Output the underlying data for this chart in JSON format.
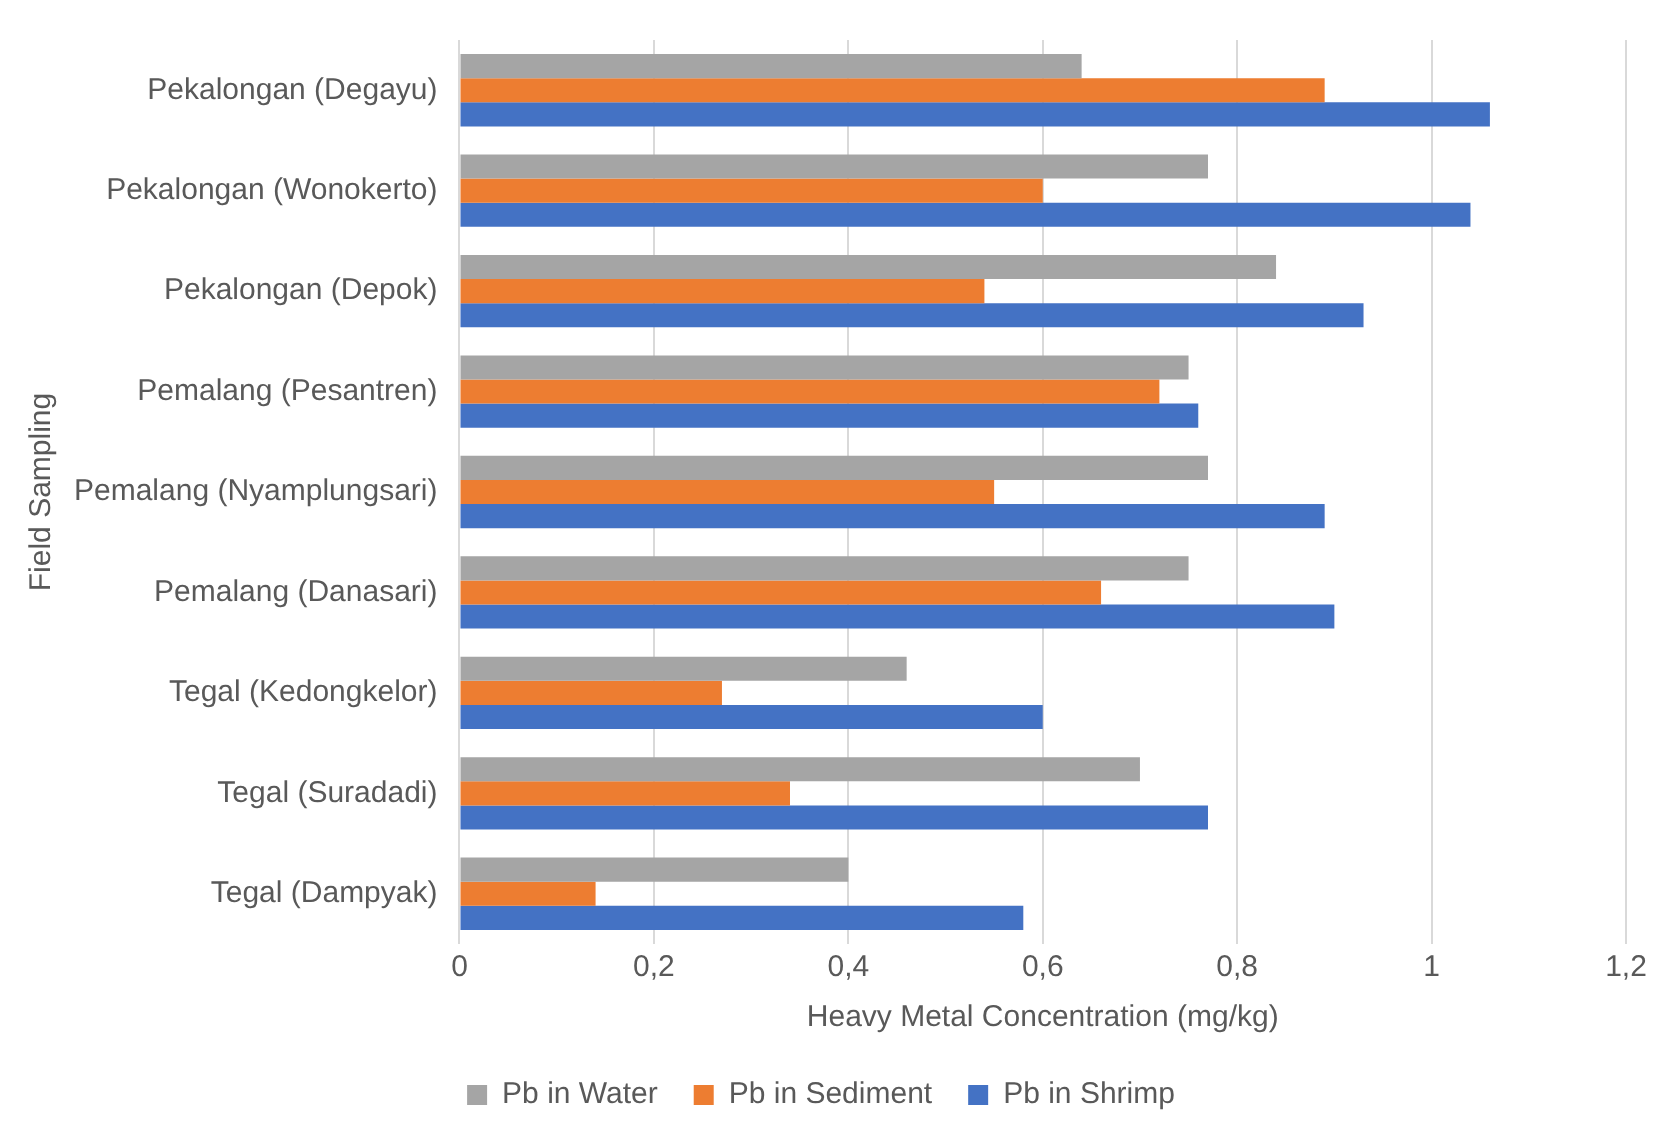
{
  "chart_data": {
    "type": "bar",
    "orientation": "horizontal",
    "xlabel": "Heavy Metal Concentration (mg/kg)",
    "ylabel": "Field Sampling",
    "categories": [
      "Pekalongan (Degayu)",
      "Pekalongan (Wonokerto)",
      "Pekalongan (Depok)",
      "Pemalang (Pesantren)",
      "Pemalang (Nyamplungsari)",
      "Pemalang (Danasari)",
      "Tegal (Kedongkelor)",
      "Tegal (Suradadi)",
      "Tegal (Dampyak)"
    ],
    "series": [
      {
        "name": "Pb in Water",
        "color": "#a5a5a5",
        "values": [
          0.64,
          0.77,
          0.84,
          0.75,
          0.77,
          0.75,
          0.46,
          0.7,
          0.4
        ]
      },
      {
        "name": "Pb in Sediment",
        "color": "#ed7d31",
        "values": [
          0.89,
          0.6,
          0.54,
          0.72,
          0.55,
          0.66,
          0.27,
          0.34,
          0.14
        ]
      },
      {
        "name": "Pb in Shrimp",
        "color": "#4472c4",
        "values": [
          1.06,
          1.04,
          0.93,
          0.76,
          0.89,
          0.9,
          0.6,
          0.77,
          0.58
        ]
      }
    ],
    "xlim": [
      0,
      1.2
    ],
    "xticks": [
      0,
      {
        "value": 0.2,
        "label": "0,2"
      },
      {
        "value": 0.4,
        "label": "0,4"
      },
      {
        "value": 0.6,
        "label": "0,6"
      },
      {
        "value": 0.8,
        "label": "0,8"
      },
      1,
      {
        "value": 1.2,
        "label": "1,2"
      }
    ],
    "grid": "x",
    "legend": "bottom"
  }
}
